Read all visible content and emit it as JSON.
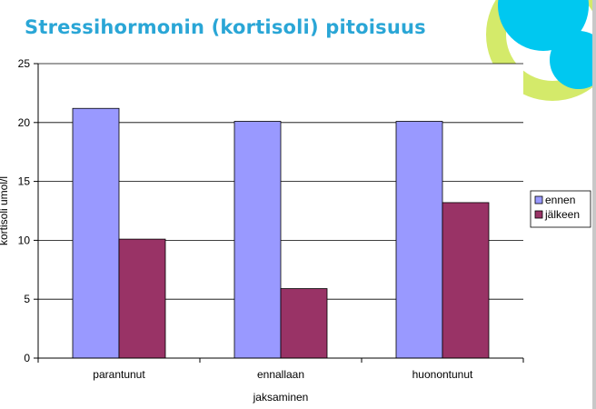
{
  "slide": {
    "title": "Stressihormonin (kortisoli) pitoisuus"
  },
  "colors": {
    "title": "#2aa6d6",
    "deco_green": "#d4ea6a",
    "deco_cyan": "#00c8f0"
  },
  "chart_data": {
    "type": "bar",
    "title": "",
    "xlabel": "jaksaminen",
    "ylabel": "kortisoli umol/l",
    "ylim": [
      0,
      25
    ],
    "yticks": [
      0,
      5,
      10,
      15,
      20,
      25
    ],
    "grid": true,
    "legend_position": "right",
    "categories": [
      "parantunut",
      "ennallaan",
      "huonontunut"
    ],
    "series": [
      {
        "name": "ennen",
        "color": "#9999ff",
        "values": [
          21.2,
          20.1,
          20.1
        ]
      },
      {
        "name": "jälkeen",
        "color": "#993366",
        "values": [
          10.1,
          5.9,
          13.2
        ]
      }
    ]
  }
}
